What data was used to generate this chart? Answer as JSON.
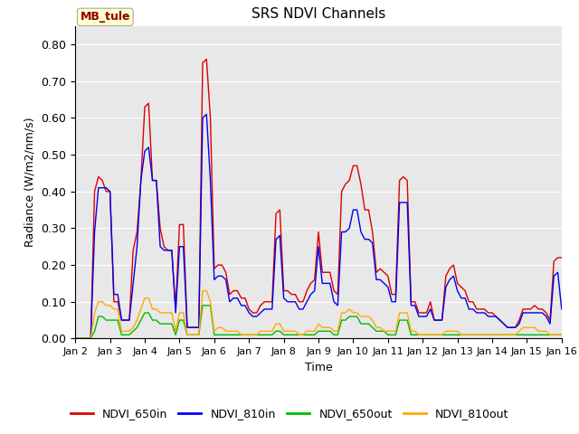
{
  "title": "SRS NDVI Channels",
  "xlabel": "Time",
  "ylabel": "Radiance (W/m2/nm/s)",
  "ylim": [
    0.0,
    0.85
  ],
  "yticks": [
    0.0,
    0.1,
    0.2,
    0.3,
    0.4,
    0.5,
    0.6,
    0.7,
    0.8
  ],
  "annotation_text": "MB_tule",
  "annotation_color": "#8B0000",
  "annotation_bg": "#FFFFD0",
  "bg_color": "#E8E8E8",
  "line_colors": {
    "NDVI_650in": "#DD0000",
    "NDVI_810in": "#0000EE",
    "NDVI_650out": "#00BB00",
    "NDVI_810out": "#FFAA00"
  },
  "xtick_labels": [
    "Jan 2",
    "Jan 3",
    "Jan 4",
    "Jan 5",
    "Jan 6",
    "Jan 7",
    "Jan 8",
    "Jan 9",
    "Jan 10",
    "Jan 11",
    "Jan 12",
    "Jan 13",
    "Jan 14",
    "Jan 15",
    "Jan 16"
  ],
  "xtick_positions": [
    0,
    1,
    2,
    3,
    4,
    5,
    6,
    7,
    8,
    9,
    10,
    11,
    12,
    13,
    14
  ],
  "series": {
    "NDVI_650in": [
      0.0,
      0.0,
      0.0,
      0.0,
      0.0,
      0.4,
      0.44,
      0.43,
      0.4,
      0.4,
      0.1,
      0.1,
      0.05,
      0.05,
      0.05,
      0.24,
      0.29,
      0.43,
      0.63,
      0.64,
      0.43,
      0.43,
      0.3,
      0.25,
      0.24,
      0.24,
      0.08,
      0.31,
      0.31,
      0.03,
      0.03,
      0.03,
      0.03,
      0.75,
      0.76,
      0.6,
      0.19,
      0.2,
      0.2,
      0.18,
      0.12,
      0.13,
      0.13,
      0.11,
      0.11,
      0.08,
      0.07,
      0.07,
      0.09,
      0.1,
      0.1,
      0.1,
      0.34,
      0.35,
      0.13,
      0.13,
      0.12,
      0.12,
      0.1,
      0.1,
      0.13,
      0.15,
      0.16,
      0.29,
      0.18,
      0.18,
      0.18,
      0.13,
      0.12,
      0.4,
      0.42,
      0.43,
      0.47,
      0.47,
      0.42,
      0.35,
      0.35,
      0.29,
      0.18,
      0.19,
      0.18,
      0.17,
      0.12,
      0.12,
      0.43,
      0.44,
      0.43,
      0.1,
      0.1,
      0.07,
      0.07,
      0.07,
      0.1,
      0.05,
      0.05,
      0.05,
      0.17,
      0.19,
      0.2,
      0.15,
      0.14,
      0.13,
      0.1,
      0.1,
      0.08,
      0.08,
      0.08,
      0.07,
      0.07,
      0.06,
      0.05,
      0.04,
      0.03,
      0.03,
      0.03,
      0.05,
      0.08,
      0.08,
      0.08,
      0.09,
      0.08,
      0.08,
      0.07,
      0.05,
      0.21,
      0.22,
      0.22
    ],
    "NDVI_810in": [
      0.0,
      0.0,
      0.0,
      0.0,
      0.0,
      0.29,
      0.41,
      0.41,
      0.41,
      0.4,
      0.12,
      0.12,
      0.05,
      0.05,
      0.05,
      0.15,
      0.25,
      0.43,
      0.51,
      0.52,
      0.43,
      0.43,
      0.25,
      0.24,
      0.24,
      0.24,
      0.07,
      0.25,
      0.25,
      0.03,
      0.03,
      0.03,
      0.03,
      0.6,
      0.61,
      0.43,
      0.16,
      0.17,
      0.17,
      0.16,
      0.1,
      0.11,
      0.11,
      0.09,
      0.09,
      0.07,
      0.06,
      0.06,
      0.07,
      0.08,
      0.08,
      0.08,
      0.27,
      0.28,
      0.11,
      0.1,
      0.1,
      0.1,
      0.08,
      0.08,
      0.1,
      0.12,
      0.13,
      0.25,
      0.15,
      0.15,
      0.15,
      0.1,
      0.09,
      0.29,
      0.29,
      0.3,
      0.35,
      0.35,
      0.29,
      0.27,
      0.27,
      0.26,
      0.16,
      0.16,
      0.15,
      0.14,
      0.1,
      0.1,
      0.37,
      0.37,
      0.37,
      0.09,
      0.09,
      0.06,
      0.06,
      0.06,
      0.08,
      0.05,
      0.05,
      0.05,
      0.14,
      0.16,
      0.17,
      0.13,
      0.11,
      0.11,
      0.08,
      0.08,
      0.07,
      0.07,
      0.07,
      0.06,
      0.06,
      0.06,
      0.05,
      0.04,
      0.03,
      0.03,
      0.03,
      0.04,
      0.07,
      0.07,
      0.07,
      0.07,
      0.07,
      0.07,
      0.06,
      0.04,
      0.17,
      0.18,
      0.08
    ],
    "NDVI_650out": [
      0.0,
      0.0,
      0.0,
      0.0,
      0.0,
      0.02,
      0.06,
      0.06,
      0.05,
      0.05,
      0.05,
      0.05,
      0.01,
      0.01,
      0.01,
      0.02,
      0.03,
      0.05,
      0.07,
      0.07,
      0.05,
      0.05,
      0.04,
      0.04,
      0.04,
      0.04,
      0.01,
      0.05,
      0.05,
      0.01,
      0.01,
      0.01,
      0.01,
      0.09,
      0.09,
      0.09,
      0.01,
      0.01,
      0.01,
      0.01,
      0.01,
      0.01,
      0.01,
      0.01,
      0.01,
      0.01,
      0.01,
      0.01,
      0.01,
      0.01,
      0.01,
      0.01,
      0.02,
      0.02,
      0.01,
      0.01,
      0.01,
      0.01,
      0.01,
      0.01,
      0.01,
      0.01,
      0.01,
      0.02,
      0.02,
      0.02,
      0.02,
      0.01,
      0.01,
      0.05,
      0.05,
      0.06,
      0.06,
      0.06,
      0.04,
      0.04,
      0.04,
      0.03,
      0.02,
      0.02,
      0.02,
      0.01,
      0.01,
      0.01,
      0.05,
      0.05,
      0.05,
      0.01,
      0.01,
      0.01,
      0.01,
      0.01,
      0.01,
      0.01,
      0.01,
      0.01,
      0.01,
      0.01,
      0.01,
      0.01,
      0.01,
      0.01,
      0.01,
      0.01,
      0.01,
      0.01,
      0.01,
      0.01,
      0.01,
      0.01,
      0.01,
      0.01,
      0.01,
      0.01,
      0.01,
      0.01,
      0.01,
      0.01,
      0.01,
      0.01,
      0.01,
      0.01,
      0.01,
      0.01,
      0.01,
      0.01,
      0.01
    ],
    "NDVI_810out": [
      0.0,
      0.0,
      0.0,
      0.0,
      0.0,
      0.07,
      0.1,
      0.1,
      0.09,
      0.09,
      0.08,
      0.08,
      0.02,
      0.02,
      0.02,
      0.03,
      0.05,
      0.08,
      0.11,
      0.11,
      0.08,
      0.08,
      0.07,
      0.07,
      0.07,
      0.07,
      0.02,
      0.07,
      0.07,
      0.01,
      0.01,
      0.01,
      0.01,
      0.13,
      0.13,
      0.1,
      0.02,
      0.03,
      0.03,
      0.02,
      0.02,
      0.02,
      0.02,
      0.01,
      0.01,
      0.01,
      0.01,
      0.01,
      0.02,
      0.02,
      0.02,
      0.02,
      0.04,
      0.04,
      0.02,
      0.02,
      0.02,
      0.02,
      0.01,
      0.01,
      0.02,
      0.02,
      0.02,
      0.04,
      0.03,
      0.03,
      0.03,
      0.02,
      0.02,
      0.07,
      0.07,
      0.08,
      0.07,
      0.07,
      0.06,
      0.06,
      0.06,
      0.05,
      0.03,
      0.03,
      0.02,
      0.02,
      0.02,
      0.02,
      0.07,
      0.07,
      0.07,
      0.02,
      0.02,
      0.01,
      0.01,
      0.01,
      0.01,
      0.01,
      0.01,
      0.01,
      0.02,
      0.02,
      0.02,
      0.02,
      0.01,
      0.01,
      0.01,
      0.01,
      0.01,
      0.01,
      0.01,
      0.01,
      0.01,
      0.01,
      0.01,
      0.01,
      0.01,
      0.01,
      0.01,
      0.02,
      0.03,
      0.03,
      0.03,
      0.03,
      0.02,
      0.02,
      0.02,
      0.01,
      0.01,
      0.01,
      0.01
    ]
  }
}
